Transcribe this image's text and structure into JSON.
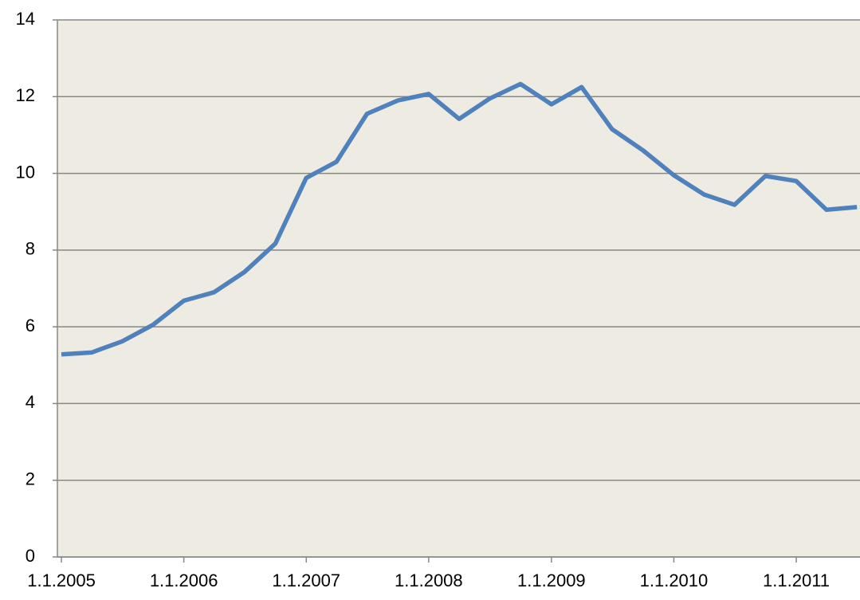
{
  "chart_data": {
    "type": "line",
    "x": [
      "2005-01-01",
      "2005-04-01",
      "2005-07-01",
      "2005-10-01",
      "2006-01-01",
      "2006-04-01",
      "2006-07-01",
      "2006-10-01",
      "2007-01-01",
      "2007-04-01",
      "2007-07-01",
      "2007-10-01",
      "2008-01-01",
      "2008-04-01",
      "2008-07-01",
      "2008-10-01",
      "2009-01-01",
      "2009-04-01",
      "2009-07-01",
      "2009-10-01",
      "2010-01-01",
      "2010-04-01",
      "2010-07-01",
      "2010-10-01",
      "2011-01-01",
      "2011-04-01",
      "2011-07-01"
    ],
    "values": [
      5.28,
      5.33,
      5.62,
      6.05,
      6.68,
      6.9,
      7.43,
      8.17,
      9.88,
      10.3,
      11.55,
      11.9,
      12.07,
      11.42,
      11.95,
      12.33,
      11.8,
      12.25,
      11.15,
      10.6,
      9.95,
      9.45,
      9.18,
      9.93,
      9.8,
      9.05,
      9.12
    ],
    "color": "#4f81bd",
    "xlim": [
      "2004-12-20",
      "2011-07-10"
    ],
    "xticks": [
      {
        "value": "2005-01-01",
        "label": "1.1.2005"
      },
      {
        "value": "2006-01-01",
        "label": "1.1.2006"
      },
      {
        "value": "2007-01-01",
        "label": "1.1.2007"
      },
      {
        "value": "2008-01-01",
        "label": "1.1.2008"
      },
      {
        "value": "2009-01-01",
        "label": "1.1.2009"
      },
      {
        "value": "2010-01-01",
        "label": "1.1.2010"
      },
      {
        "value": "2011-01-01",
        "label": "1.1.2011"
      }
    ],
    "ylim": [
      0,
      14
    ],
    "yticks": [
      0,
      2,
      4,
      6,
      8,
      10,
      12,
      14
    ],
    "grid": true
  }
}
